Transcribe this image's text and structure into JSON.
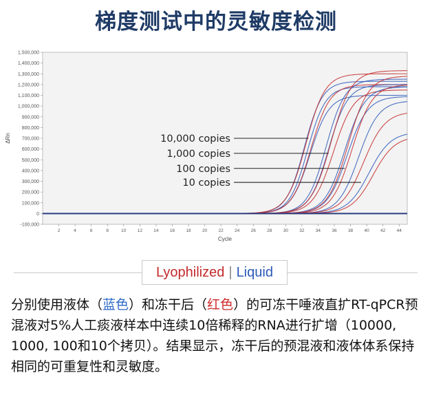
{
  "title": "梯度测试中的灵敏度检测",
  "legend": {
    "lyophilized": "Lyophilized",
    "separator": "|",
    "liquid": "Liquid"
  },
  "description": {
    "p1": "分别使用液体（",
    "blue_word": "蓝色",
    "p2": "）和冻干后（",
    "red_word": "红色",
    "p3": "）的可冻干唾液直扩RT-qPCR预混液对5%人工痰液样本中连续10倍稀释的RNA进行扩增（10000, 1000, 100和10个拷贝）。结果显示，冻干后的预混液和液体体系保持相同的可重复性和灵敏度。"
  },
  "colors": {
    "title": "#1f3b66",
    "lyophilized": "#c42a2a",
    "liquid": "#2b58b8",
    "description_blue": "#2b68c8",
    "description_red": "#d02a2a"
  },
  "chart_data": {
    "type": "line",
    "xlabel": "Cycle",
    "ylabel": "ΔRn",
    "xlim": [
      0,
      45
    ],
    "ylim": [
      -100000,
      1500000
    ],
    "x_ticks": [
      2,
      4,
      6,
      8,
      10,
      12,
      14,
      16,
      18,
      20,
      22,
      24,
      26,
      28,
      30,
      32,
      34,
      36,
      38,
      40,
      42,
      44
    ],
    "y_ticks": [
      -100000,
      0,
      100000,
      200000,
      300000,
      400000,
      500000,
      600000,
      700000,
      800000,
      900000,
      1000000,
      1100000,
      1200000,
      1300000,
      1400000,
      1500000
    ],
    "y_tick_labels": [
      "-100,000",
      "0",
      "100,000",
      "200,000",
      "300,000",
      "400,000",
      "500,000",
      "600,000",
      "700,000",
      "800,000",
      "900,000",
      "1,000,000",
      "1,100,000",
      "1,200,000",
      "1,300,000",
      "1,400,000",
      "1,500,000"
    ],
    "annotations": [
      "10,000 copies",
      "1,000 copies",
      "100 copies",
      "10 copies"
    ],
    "annotation_targets": [
      {
        "label": "10,000 copies",
        "x": 32.8,
        "y": 700000
      },
      {
        "label": "1,000 copies",
        "x": 35.3,
        "y": 560000
      },
      {
        "label": "100 copies",
        "x": 37.3,
        "y": 420000
      },
      {
        "label": "10 copies",
        "x": 39.3,
        "y": 290000
      }
    ],
    "series": [
      {
        "color": "#2b58b8",
        "plateau": 1230000,
        "ct": 32.3,
        "k": 0.9
      },
      {
        "color": "#2b58b8",
        "plateau": 1180000,
        "ct": 32.7,
        "k": 0.9
      },
      {
        "color": "#2b58b8",
        "plateau": 1100000,
        "ct": 33.0,
        "k": 0.85
      },
      {
        "color": "#c42a2a",
        "plateau": 1300000,
        "ct": 32.5,
        "k": 0.85
      },
      {
        "color": "#c42a2a",
        "plateau": 1200000,
        "ct": 33.1,
        "k": 0.85
      },
      {
        "color": "#2b58b8",
        "plateau": 1250000,
        "ct": 35.0,
        "k": 0.85
      },
      {
        "color": "#2b58b8",
        "plateau": 1200000,
        "ct": 35.3,
        "k": 0.85
      },
      {
        "color": "#c42a2a",
        "plateau": 1330000,
        "ct": 35.6,
        "k": 0.8
      },
      {
        "color": "#c42a2a",
        "plateau": 1150000,
        "ct": 35.9,
        "k": 0.8
      },
      {
        "color": "#2b58b8",
        "plateau": 1180000,
        "ct": 37.3,
        "k": 0.8
      },
      {
        "color": "#2b58b8",
        "plateau": 1090000,
        "ct": 37.6,
        "k": 0.8
      },
      {
        "color": "#c42a2a",
        "plateau": 1280000,
        "ct": 37.7,
        "k": 0.8
      },
      {
        "color": "#c42a2a",
        "plateau": 1200000,
        "ct": 38.2,
        "k": 0.8
      },
      {
        "color": "#2b58b8",
        "plateau": 1050000,
        "ct": 39.0,
        "k": 0.8
      },
      {
        "color": "#2b58b8",
        "plateau": 760000,
        "ct": 40.3,
        "k": 0.75
      },
      {
        "color": "#c42a2a",
        "plateau": 950000,
        "ct": 39.6,
        "k": 0.75
      },
      {
        "color": "#c42a2a",
        "plateau": 720000,
        "ct": 40.8,
        "k": 0.75
      }
    ]
  }
}
